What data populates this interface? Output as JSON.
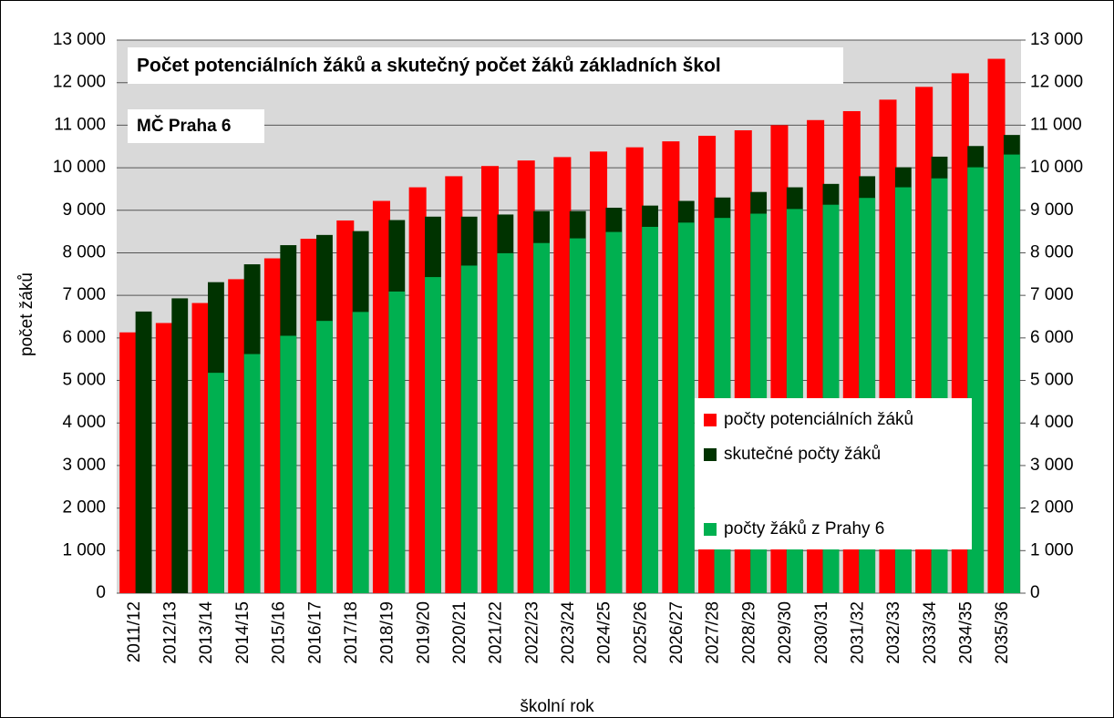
{
  "chart_data": {
    "type": "bar",
    "title": "Počet potenciálních žáků a skutečný počet žáků základních škol",
    "subtitle": "MČ Praha 6",
    "x_label": "školní rok",
    "y_label": "počet žáků",
    "categories": [
      "2011/12",
      "2012/13",
      "2013/14",
      "2014/15",
      "2015/16",
      "2016/17",
      "2017/18",
      "2018/19",
      "2019/20",
      "2020/21",
      "2021/22",
      "2022/23",
      "2023/24",
      "2024/25",
      "2025/26",
      "2026/27",
      "2027/28",
      "2028/29",
      "2029/30",
      "2030/31",
      "2031/32",
      "2032/33",
      "2033/34",
      "2034/35",
      "2035/36"
    ],
    "series": [
      {
        "name": "počty potenciálních žáků",
        "color": "#ff0000",
        "values": [
          6130,
          6350,
          6820,
          7380,
          7870,
          8330,
          8760,
          9220,
          9540,
          9800,
          10040,
          10170,
          10250,
          10380,
          10480,
          10620,
          10750,
          10880,
          11000,
          11120,
          11330,
          11600,
          11900,
          12220,
          12560
        ]
      },
      {
        "name": "skutečné počty žáků",
        "color": "#003300",
        "values": [
          6620,
          6930,
          7310,
          7730,
          8180,
          8420,
          8510,
          8770,
          8850,
          8850,
          8900,
          8980,
          8980,
          9060,
          9110,
          9220,
          9300,
          9430,
          9540,
          9620,
          9800,
          10010,
          10260,
          10510,
          10770
        ]
      },
      {
        "name": "počty žáků z Prahy 6",
        "color": "#00b050",
        "values": [
          null,
          null,
          5180,
          5620,
          6050,
          6400,
          6610,
          7090,
          7430,
          7700,
          7990,
          8230,
          8340,
          8490,
          8610,
          8710,
          8820,
          8920,
          9030,
          9130,
          9290,
          9540,
          9750,
          10010,
          10310
        ]
      }
    ],
    "ylim": [
      0,
      13000
    ],
    "yticks": [
      0,
      {
        "value": 1000,
        "label": "1 000"
      },
      {
        "value": 2000,
        "label": "2 000"
      },
      {
        "value": 3000,
        "label": "3 000"
      },
      {
        "value": 4000,
        "label": "4 000"
      },
      {
        "value": 5000,
        "label": "5 000"
      },
      {
        "value": 6000,
        "label": "6 000"
      },
      {
        "value": 7000,
        "label": "7 000"
      },
      {
        "value": 8000,
        "label": "8 000"
      },
      {
        "value": 9000,
        "label": "9 000"
      },
      {
        "value": 10000,
        "label": "10 000"
      },
      {
        "value": 11000,
        "label": "11 000"
      },
      {
        "value": 12000,
        "label": "12 000"
      },
      {
        "value": 13000,
        "label": "13 000"
      }
    ],
    "y2lim": [
      0,
      13000
    ],
    "y2ticks": [
      0,
      {
        "value": 1000,
        "label": "1 000"
      },
      {
        "value": 2000,
        "label": "2 000"
      },
      {
        "value": 3000,
        "label": "3 000"
      },
      {
        "value": 4000,
        "label": "4 000"
      },
      {
        "value": 5000,
        "label": "5 000"
      },
      {
        "value": 6000,
        "label": "6 000"
      },
      {
        "value": 7000,
        "label": "7 000"
      },
      {
        "value": 8000,
        "label": "8 000"
      },
      {
        "value": 9000,
        "label": "9 000"
      },
      {
        "value": 10000,
        "label": "10 000"
      },
      {
        "value": 11000,
        "label": "11 000"
      },
      {
        "value": 12000,
        "label": "12 000"
      },
      {
        "value": 13000,
        "label": "13 000"
      }
    ],
    "grid": true
  }
}
